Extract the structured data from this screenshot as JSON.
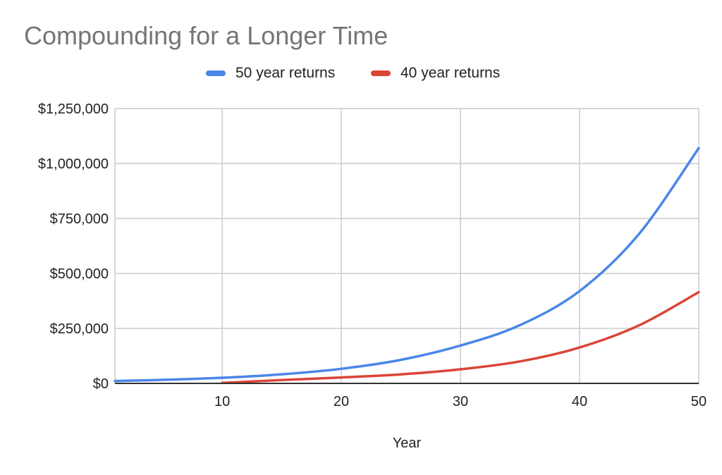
{
  "chart_data": {
    "type": "line",
    "title": "Compounding for a Longer Time",
    "xlabel": "Year",
    "ylabel": "",
    "xlim": [
      1,
      50
    ],
    "ylim": [
      0,
      1250000
    ],
    "x_ticks": [
      10,
      20,
      30,
      40,
      50
    ],
    "x_tick_labels": [
      "10",
      "20",
      "30",
      "40",
      "50"
    ],
    "y_ticks": [
      0,
      250000,
      500000,
      750000,
      1000000,
      1250000
    ],
    "y_tick_labels": [
      "$0",
      "$250,000",
      "$500,000",
      "$750,000",
      "$1,000,000",
      "$1,250,000"
    ],
    "grid": true,
    "legend_position": "top",
    "x": [
      1,
      5,
      10,
      15,
      20,
      25,
      30,
      35,
      40,
      45,
      50
    ],
    "series": [
      {
        "name": "50 year returns",
        "color": "#4a86e8",
        "values": [
          11000,
          16000,
          25700,
          41300,
          66500,
          107000,
          172000,
          265000,
          420000,
          680000,
          1070000
        ]
      },
      {
        "name": "40 year returns",
        "color": "#db4437",
        "values": [
          null,
          null,
          2000,
          15000,
          27000,
          41000,
          64000,
          100000,
          163000,
          264000,
          415000
        ]
      }
    ]
  }
}
